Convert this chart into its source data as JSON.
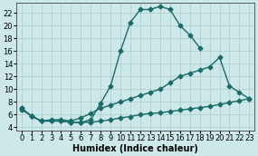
{
  "bg_color": "#cce8e8",
  "grid_color": "#aacccc",
  "line_color": "#1a6b6b",
  "markersize": 2.5,
  "linewidth": 1.0,
  "xlabel": "Humidex (Indice chaleur)",
  "xlabel_fontsize": 7,
  "tick_fontsize": 6,
  "xlim": [
    -0.5,
    23.5
  ],
  "ylim": [
    3.5,
    23.5
  ],
  "yticks": [
    4,
    6,
    8,
    10,
    12,
    14,
    16,
    18,
    20,
    22
  ],
  "xticks": [
    0,
    1,
    2,
    3,
    4,
    5,
    6,
    7,
    8,
    9,
    10,
    11,
    12,
    13,
    14,
    15,
    16,
    17,
    18,
    19,
    20,
    21,
    22,
    23
  ],
  "curve_peaked_x": [
    0,
    1,
    2,
    3,
    4,
    5,
    6,
    7,
    8,
    9,
    10,
    11,
    12,
    13,
    14,
    15,
    16,
    17,
    18
  ],
  "curve_peaked_y": [
    7.0,
    5.8,
    5.0,
    5.0,
    5.0,
    4.8,
    4.8,
    5.2,
    7.8,
    10.5,
    16.0,
    20.5,
    22.5,
    22.5,
    23.0,
    22.5,
    20.0,
    18.5,
    16.5
  ],
  "curve_mid_x": [
    0,
    1,
    2,
    3,
    4,
    5,
    6,
    7,
    8,
    9,
    10,
    11,
    12,
    13,
    14,
    15,
    16,
    17,
    18,
    19,
    20,
    21,
    22,
    23
  ],
  "curve_mid_y": [
    7.0,
    5.8,
    5.0,
    5.2,
    5.2,
    5.0,
    5.5,
    6.2,
    7.0,
    7.5,
    8.0,
    8.5,
    9.0,
    9.5,
    10.0,
    11.0,
    12.0,
    12.5,
    13.0,
    13.5,
    15.0,
    10.5,
    9.5,
    8.5
  ],
  "curve_flat_x": [
    0,
    1,
    2,
    3,
    4,
    5,
    6,
    7,
    8,
    9,
    10,
    11,
    12,
    13,
    14,
    15,
    16,
    17,
    18,
    19,
    20,
    21,
    22,
    23
  ],
  "curve_flat_y": [
    6.8,
    5.8,
    5.0,
    5.0,
    5.0,
    4.8,
    4.8,
    4.8,
    5.0,
    5.2,
    5.5,
    5.7,
    6.0,
    6.2,
    6.3,
    6.5,
    6.7,
    6.9,
    7.1,
    7.3,
    7.6,
    7.9,
    8.2,
    8.5
  ]
}
